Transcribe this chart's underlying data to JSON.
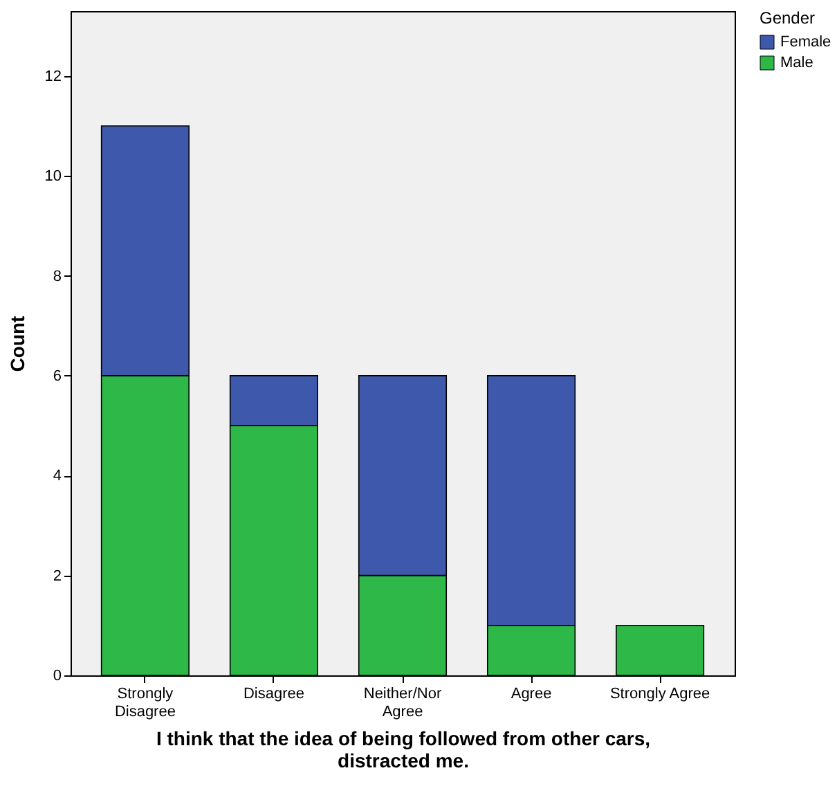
{
  "chart_data": {
    "type": "bar",
    "stacked": true,
    "xlabel": "I think that the idea of being followed from other cars, distracted me.",
    "ylabel": "Count",
    "legend_title": "Gender",
    "legend": "top right",
    "grid": false,
    "categories": [
      "Strongly Disagree",
      "Disagree",
      "Neither/Nor Agree",
      "Agree",
      "Strongly Agree"
    ],
    "ylim": [
      0,
      13.3
    ],
    "yticks": [
      0,
      2,
      4,
      6,
      8,
      10,
      12
    ],
    "series": [
      {
        "name": "Male",
        "color": "#2eb848",
        "values": [
          6,
          5,
          2,
          1,
          1
        ]
      },
      {
        "name": "Female",
        "color": "#3e58ac",
        "values": [
          5,
          1,
          4,
          5,
          null
        ]
      }
    ]
  }
}
